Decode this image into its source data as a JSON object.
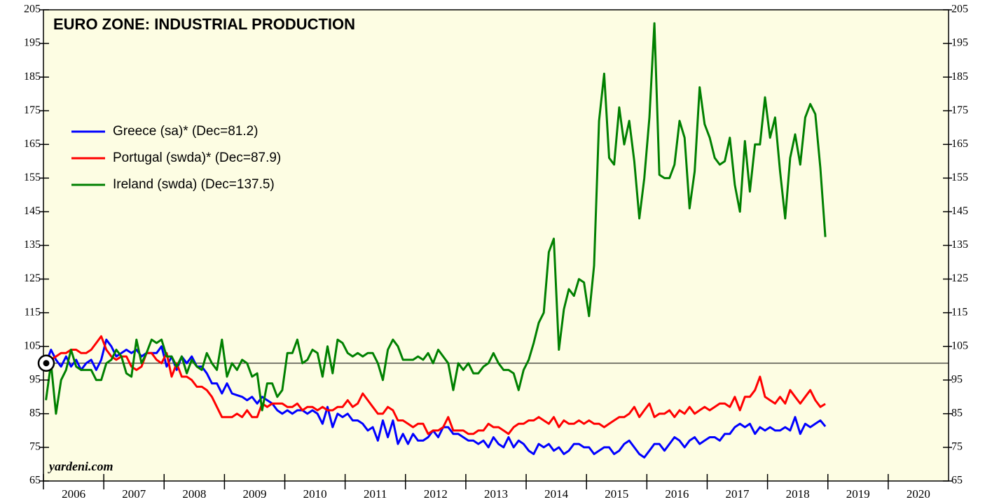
{
  "chart_data": {
    "type": "line",
    "title": "EURO ZONE: INDUSTRIAL PRODUCTION",
    "watermark": "yardeni.com",
    "xlim": [
      2006,
      2021
    ],
    "xticks": [
      2006,
      2007,
      2008,
      2009,
      2010,
      2011,
      2012,
      2013,
      2014,
      2015,
      2016,
      2017,
      2018,
      2019,
      2020
    ],
    "ylim": [
      65,
      205
    ],
    "yticks": [
      65,
      75,
      85,
      95,
      105,
      115,
      125,
      135,
      145,
      155,
      165,
      175,
      185,
      195,
      205
    ],
    "reference_line": 100,
    "legend": "upper left",
    "x": [
      2006.042,
      2006.125,
      2006.208,
      2006.292,
      2006.375,
      2006.458,
      2006.542,
      2006.625,
      2006.708,
      2006.792,
      2006.875,
      2006.958,
      2007.042,
      2007.125,
      2007.208,
      2007.292,
      2007.375,
      2007.458,
      2007.542,
      2007.625,
      2007.708,
      2007.792,
      2007.875,
      2007.958,
      2008.042,
      2008.125,
      2008.208,
      2008.292,
      2008.375,
      2008.458,
      2008.542,
      2008.625,
      2008.708,
      2008.792,
      2008.875,
      2008.958,
      2009.042,
      2009.125,
      2009.208,
      2009.292,
      2009.375,
      2009.458,
      2009.542,
      2009.625,
      2009.708,
      2009.792,
      2009.875,
      2009.958,
      2010.042,
      2010.125,
      2010.208,
      2010.292,
      2010.375,
      2010.458,
      2010.542,
      2010.625,
      2010.708,
      2010.792,
      2010.875,
      2010.958,
      2011.042,
      2011.125,
      2011.208,
      2011.292,
      2011.375,
      2011.458,
      2011.542,
      2011.625,
      2011.708,
      2011.792,
      2011.875,
      2011.958,
      2012.042,
      2012.125,
      2012.208,
      2012.292,
      2012.375,
      2012.458,
      2012.542,
      2012.625,
      2012.708,
      2012.792,
      2012.875,
      2012.958,
      2013.042,
      2013.125,
      2013.208,
      2013.292,
      2013.375,
      2013.458,
      2013.542,
      2013.625,
      2013.708,
      2013.792,
      2013.875,
      2013.958,
      2014.042,
      2014.125,
      2014.208,
      2014.292,
      2014.375,
      2014.458,
      2014.542,
      2014.625,
      2014.708,
      2014.792,
      2014.875,
      2014.958,
      2015.042,
      2015.125,
      2015.208,
      2015.292,
      2015.375,
      2015.458,
      2015.542,
      2015.625,
      2015.708,
      2015.792,
      2015.875,
      2015.958,
      2016.042,
      2016.125,
      2016.208,
      2016.292,
      2016.375,
      2016.458,
      2016.542,
      2016.625,
      2016.708,
      2016.792,
      2016.875,
      2016.958,
      2017.042,
      2017.125,
      2017.208,
      2017.292,
      2017.375,
      2017.458,
      2017.542,
      2017.625,
      2017.708,
      2017.792,
      2017.875,
      2017.958,
      2018.042,
      2018.125,
      2018.208,
      2018.292,
      2018.375,
      2018.458,
      2018.542,
      2018.625,
      2018.708,
      2018.792,
      2018.875,
      2018.958
    ],
    "series": [
      {
        "name": "Greece (sa)* (Dec=81.2)",
        "color": "#0000ff",
        "values": [
          100,
          104,
          101,
          99,
          102,
          99,
          101,
          98,
          100,
          101,
          98,
          101,
          107,
          105,
          102,
          103,
          104,
          103,
          104,
          102,
          103,
          103,
          103,
          105,
          99,
          102,
          98,
          102,
          100,
          102,
          99,
          99,
          97,
          94,
          94,
          91,
          94,
          91,
          90.5,
          90,
          89,
          90,
          88,
          90,
          89,
          88,
          86,
          85,
          86,
          85,
          86,
          86,
          85,
          86,
          85,
          82,
          87,
          81,
          85,
          84,
          85,
          83,
          83,
          82,
          80,
          81,
          77,
          83,
          78,
          83,
          76,
          79,
          76,
          79,
          77,
          77,
          78,
          80,
          78,
          81,
          81,
          79,
          79,
          78,
          77,
          77,
          76,
          77,
          75,
          78,
          76,
          75,
          78,
          75,
          77,
          76,
          74,
          73,
          76,
          75,
          76,
          74,
          75,
          73,
          74,
          76,
          76,
          75,
          75,
          73,
          74,
          75,
          75,
          73,
          74,
          76,
          77,
          75,
          73,
          72,
          74,
          76,
          76,
          74,
          76,
          78,
          77,
          75,
          77,
          78,
          76,
          77,
          78,
          78,
          77,
          79,
          79,
          81,
          82,
          81,
          82,
          79,
          81,
          80,
          81,
          80,
          80,
          81,
          80,
          84,
          79,
          82,
          81,
          82,
          83,
          81.2
        ]
      },
      {
        "name": "Portugal (swda)* (Dec=87.9)",
        "color": "#ff0000",
        "values": [
          100,
          101,
          102,
          103,
          103,
          104,
          104,
          103,
          103,
          104,
          106,
          108,
          104,
          102,
          101,
          102,
          102,
          99,
          98,
          99,
          103,
          103,
          101,
          100,
          103,
          96,
          100,
          96,
          96,
          95,
          93,
          93,
          92,
          90,
          87,
          84,
          84,
          84,
          85,
          84,
          86,
          84,
          84,
          88,
          87,
          88,
          88,
          88,
          87,
          87,
          88,
          86,
          87,
          87,
          86,
          87,
          86,
          86,
          87,
          87,
          89,
          87,
          88,
          91,
          89,
          87,
          85,
          85,
          87,
          86,
          83,
          83,
          82,
          81,
          82,
          82,
          79,
          80,
          80,
          81,
          84,
          80,
          80,
          80,
          79,
          79,
          80,
          80,
          82,
          81,
          81,
          80,
          79,
          81,
          82,
          82,
          83,
          83,
          84,
          83,
          82,
          84,
          81,
          83,
          82,
          82,
          83,
          82,
          83,
          82,
          82,
          81,
          82,
          83,
          84,
          84,
          85,
          87,
          84,
          86,
          88,
          84,
          85,
          85,
          86,
          84,
          86,
          85,
          87,
          85,
          86,
          87,
          86,
          87,
          88,
          88,
          87,
          90,
          86,
          90,
          90,
          92,
          96,
          90,
          89,
          88,
          90,
          88,
          92,
          90,
          88,
          90,
          92,
          89,
          87,
          87.9
        ]
      },
      {
        "name": "Ireland (swda) (Dec=137.5)",
        "color": "#008000",
        "values": [
          89,
          100,
          85,
          95,
          98,
          104,
          99,
          98,
          98,
          98,
          95,
          95,
          100,
          101,
          104,
          102,
          97,
          96,
          107,
          100,
          103,
          107,
          106,
          107,
          102,
          102,
          99,
          102,
          97,
          101,
          99,
          98,
          103,
          100,
          98,
          107,
          96,
          100,
          98,
          101,
          100,
          96,
          97,
          86,
          94,
          94,
          90,
          92,
          103,
          103,
          107,
          100,
          101,
          104,
          103,
          96,
          105,
          97,
          107,
          106,
          103,
          102,
          103,
          102,
          103,
          103,
          100,
          95,
          104,
          107,
          105,
          101,
          101,
          101,
          102,
          101,
          103,
          100,
          104,
          102,
          100,
          92,
          100,
          98,
          100,
          97,
          97,
          99,
          100,
          103,
          100,
          98,
          98,
          97,
          92,
          98,
          101,
          106,
          112,
          115,
          133,
          137,
          104,
          116,
          122,
          120,
          125,
          124,
          114,
          129,
          172,
          186,
          161,
          159,
          176,
          165,
          172,
          160,
          143,
          155,
          173,
          201,
          156,
          155,
          155,
          159,
          172,
          167,
          146,
          157,
          182,
          171,
          167,
          161,
          159,
          160,
          167,
          153,
          145,
          166,
          151,
          165,
          165,
          179,
          167,
          173,
          157,
          143,
          161,
          168,
          159,
          173,
          177,
          174,
          158,
          137.5
        ]
      }
    ]
  }
}
